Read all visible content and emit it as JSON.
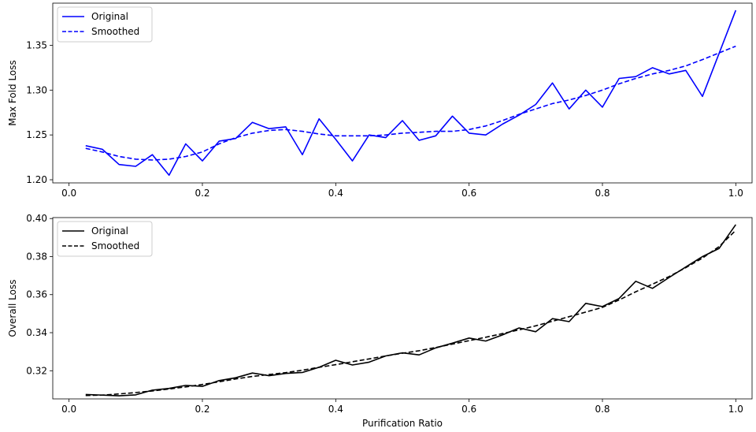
{
  "chart_data": [
    {
      "type": "line",
      "xlabel": "",
      "ylabel": "Max Fold Loss",
      "xlim": [
        -0.0244,
        1.0244
      ],
      "ylim": [
        1.1965,
        1.397
      ],
      "xticks": [
        0.0,
        0.2,
        0.4,
        0.6,
        0.8,
        1.0
      ],
      "xtick_labels": [
        "0.0",
        "0.2",
        "0.4",
        "0.6",
        "0.8",
        "1.0"
      ],
      "yticks": [
        1.2,
        1.25,
        1.3,
        1.35
      ],
      "ytick_labels": [
        "1.20",
        "1.25",
        "1.30",
        "1.35"
      ],
      "grid": false,
      "legend": {
        "placement": "top-left",
        "entries": [
          "Original",
          "Smoothed"
        ]
      },
      "x": [
        0.025,
        0.05,
        0.075,
        0.1,
        0.125,
        0.15,
        0.175,
        0.2,
        0.225,
        0.25,
        0.275,
        0.3,
        0.325,
        0.35,
        0.375,
        0.4,
        0.425,
        0.45,
        0.475,
        0.5,
        0.525,
        0.55,
        0.575,
        0.6,
        0.625,
        0.65,
        0.675,
        0.7,
        0.725,
        0.75,
        0.775,
        0.8,
        0.825,
        0.85,
        0.875,
        0.9,
        0.925,
        0.95,
        1.0
      ],
      "series": [
        {
          "name": "Original",
          "color": "#0000ff",
          "style": "solid",
          "values": [
            1.238,
            1.234,
            1.217,
            1.215,
            1.228,
            1.205,
            1.24,
            1.221,
            1.243,
            1.246,
            1.264,
            1.257,
            1.259,
            1.228,
            1.268,
            1.245,
            1.221,
            1.25,
            1.247,
            1.266,
            1.244,
            1.249,
            1.271,
            1.252,
            1.25,
            1.262,
            1.272,
            1.284,
            1.308,
            1.279,
            1.3,
            1.281,
            1.313,
            1.315,
            1.325,
            1.318,
            1.322,
            1.293,
            1.389
          ]
        },
        {
          "name": "Smoothed",
          "color": "#0000ff",
          "style": "dashed",
          "values": [
            1.235,
            1.231,
            1.226,
            1.223,
            1.222,
            1.223,
            1.226,
            1.231,
            1.24,
            1.247,
            1.252,
            1.255,
            1.256,
            1.254,
            1.251,
            1.249,
            1.249,
            1.249,
            1.25,
            1.252,
            1.253,
            1.254,
            1.254,
            1.256,
            1.26,
            1.266,
            1.273,
            1.279,
            1.285,
            1.289,
            1.294,
            1.3,
            1.307,
            1.313,
            1.318,
            1.322,
            1.327,
            1.334,
            1.349
          ]
        }
      ]
    },
    {
      "type": "line",
      "xlabel": "Purification Ratio",
      "ylabel": "Overall Loss",
      "xlim": [
        -0.0244,
        1.0244
      ],
      "ylim": [
        0.3052,
        0.4005
      ],
      "xticks": [
        0.0,
        0.2,
        0.4,
        0.6,
        0.8,
        1.0
      ],
      "xtick_labels": [
        "0.0",
        "0.2",
        "0.4",
        "0.6",
        "0.8",
        "1.0"
      ],
      "yticks": [
        0.32,
        0.34,
        0.36,
        0.38,
        0.4
      ],
      "ytick_labels": [
        "0.32",
        "0.34",
        "0.36",
        "0.38",
        "0.40"
      ],
      "grid": false,
      "legend": {
        "placement": "top-left",
        "entries": [
          "Original",
          "Smoothed"
        ]
      },
      "x": [
        0.025,
        0.05,
        0.075,
        0.1,
        0.125,
        0.15,
        0.175,
        0.2,
        0.225,
        0.25,
        0.275,
        0.3,
        0.325,
        0.35,
        0.375,
        0.4,
        0.425,
        0.45,
        0.475,
        0.5,
        0.525,
        0.55,
        0.575,
        0.6,
        0.625,
        0.65,
        0.675,
        0.7,
        0.725,
        0.75,
        0.775,
        0.8,
        0.825,
        0.85,
        0.875,
        0.9,
        0.925,
        0.95,
        0.975,
        1.0
      ],
      "series": [
        {
          "name": "Original",
          "color": "#000000",
          "style": "solid",
          "values": [
            0.3075,
            0.3072,
            0.3068,
            0.3073,
            0.3098,
            0.3107,
            0.3123,
            0.3118,
            0.3148,
            0.3163,
            0.3188,
            0.3174,
            0.3186,
            0.3191,
            0.3218,
            0.3255,
            0.323,
            0.3245,
            0.3278,
            0.3294,
            0.3283,
            0.332,
            0.3345,
            0.3372,
            0.3356,
            0.3388,
            0.3425,
            0.3405,
            0.3474,
            0.3458,
            0.3554,
            0.3537,
            0.358,
            0.367,
            0.3633,
            0.369,
            0.3745,
            0.38,
            0.3843,
            0.3968
          ]
        },
        {
          "name": "Smoothed",
          "color": "#000000",
          "style": "dashed",
          "values": [
            0.307,
            0.3072,
            0.3078,
            0.3085,
            0.3094,
            0.3104,
            0.3115,
            0.3128,
            0.3142,
            0.3157,
            0.317,
            0.318,
            0.319,
            0.3203,
            0.3218,
            0.3232,
            0.3247,
            0.3262,
            0.3278,
            0.3292,
            0.3305,
            0.3322,
            0.334,
            0.3358,
            0.3376,
            0.3395,
            0.3415,
            0.3436,
            0.346,
            0.3484,
            0.3508,
            0.3533,
            0.3572,
            0.3615,
            0.3655,
            0.3695,
            0.3742,
            0.3792,
            0.3853,
            0.3938
          ]
        }
      ]
    }
  ]
}
